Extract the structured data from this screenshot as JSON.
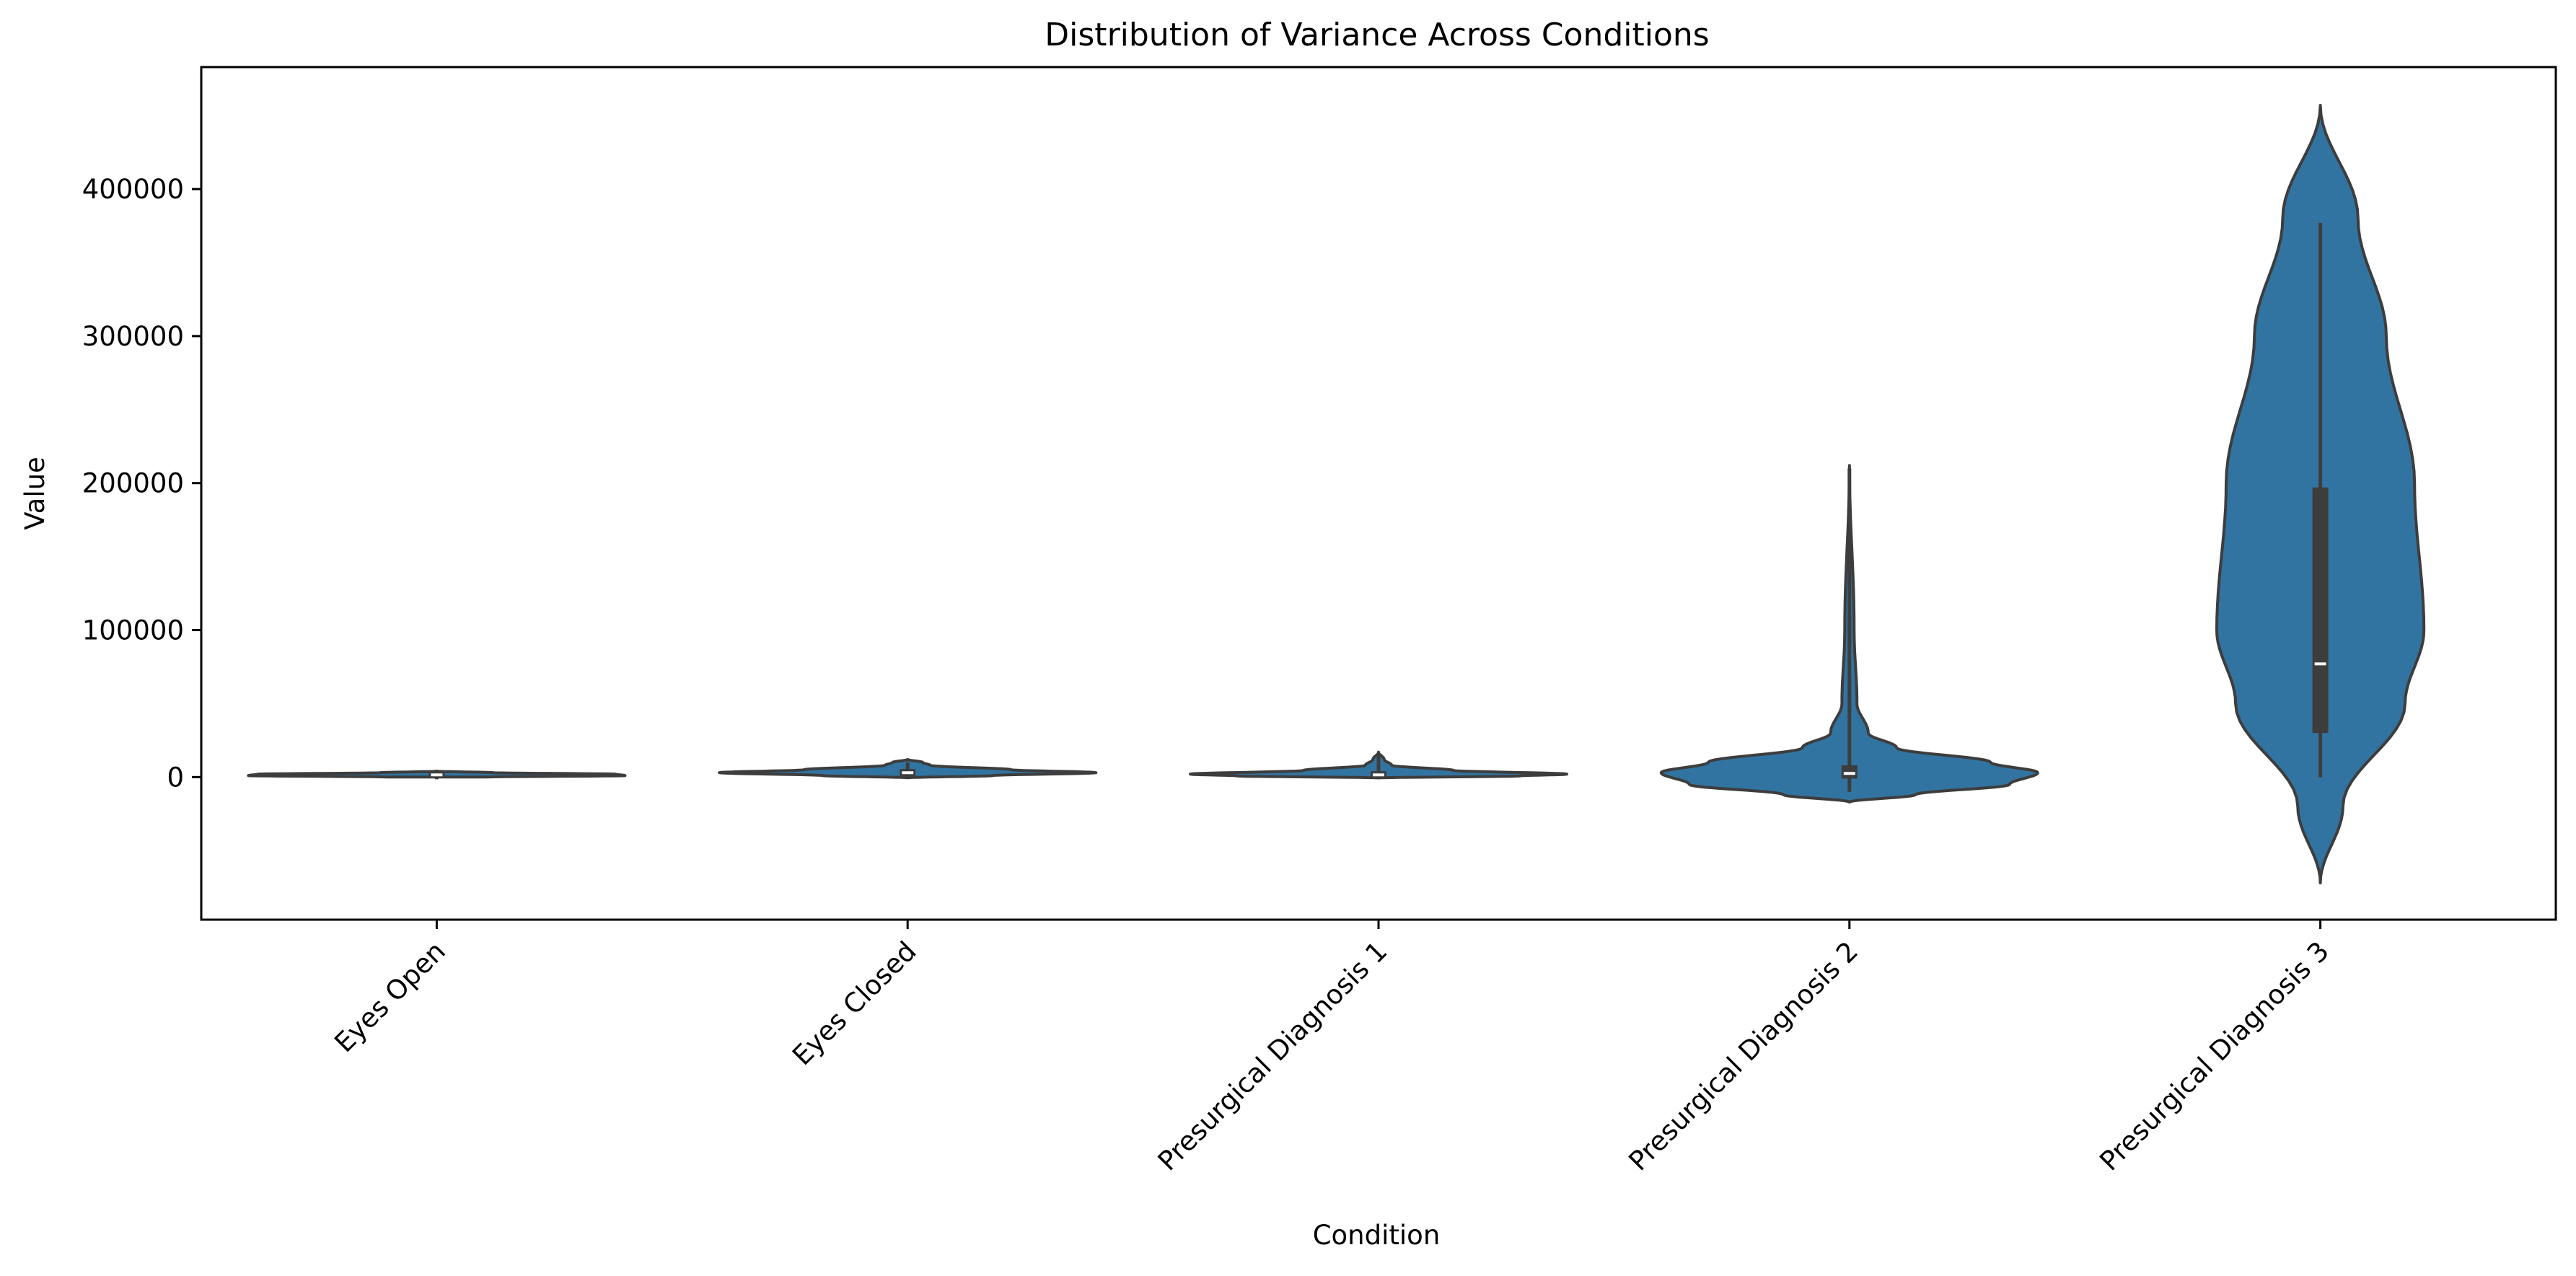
{
  "chart_data": {
    "type": "violin",
    "title": "Distribution of Variance Across Conditions",
    "xlabel": "Condition",
    "ylabel": "Value",
    "ylim": [
      -97000,
      483000
    ],
    "yticks": [
      0,
      100000,
      200000,
      300000,
      400000
    ],
    "ytick_labels": [
      "0",
      "100000",
      "200000",
      "300000",
      "400000"
    ],
    "grid": false,
    "legend": "none",
    "colors": {
      "violin_fill": "#3274a1",
      "edge": "#3d3d3d",
      "box": "#3d3d3d",
      "median": "#ffffff"
    },
    "categories": [
      "Eyes Open",
      "Eyes Closed",
      "Presurgical Diagnosis 1",
      "Presurgical Diagnosis 2",
      "Presurgical Diagnosis 3"
    ],
    "violins": [
      {
        "category": "Eyes Open",
        "kde_min": 0,
        "kde_max": 4000,
        "q1": -500,
        "median": 1500,
        "q3": 4000,
        "whisker_low": -1500,
        "whisker_high": 5000,
        "density": [
          [
            0,
            0.25
          ],
          [
            1000,
            1.0
          ],
          [
            2000,
            0.95
          ],
          [
            3000,
            0.3
          ],
          [
            4000,
            0.0
          ]
        ]
      },
      {
        "category": "Eyes Closed",
        "kde_min": -500,
        "kde_max": 12000,
        "q1": 700,
        "median": 3000,
        "q3": 5500,
        "whisker_low": -800,
        "whisker_high": 10000,
        "density": [
          [
            -500,
            0.0
          ],
          [
            1000,
            0.45
          ],
          [
            3000,
            1.0
          ],
          [
            5000,
            0.55
          ],
          [
            8000,
            0.12
          ],
          [
            10000,
            0.08
          ],
          [
            12000,
            0.0
          ]
        ]
      },
      {
        "category": "Presurgical Diagnosis 1",
        "kde_min": -600,
        "kde_max": 17000,
        "q1": 200,
        "median": 1500,
        "q3": 4000,
        "whisker_low": -800,
        "whisker_high": 15000,
        "density": [
          [
            -600,
            0.0
          ],
          [
            800,
            0.75
          ],
          [
            2000,
            1.0
          ],
          [
            4500,
            0.4
          ],
          [
            8000,
            0.07
          ],
          [
            12000,
            0.03
          ],
          [
            17000,
            0.0
          ]
        ]
      },
      {
        "category": "Presurgical Diagnosis 2",
        "kde_min": -17000,
        "kde_max": 212000,
        "q1": -1000,
        "median": 2500,
        "q3": 8000,
        "whisker_low": -10000,
        "whisker_high": 210000,
        "density": [
          [
            -17000,
            0.0
          ],
          [
            -12000,
            0.35
          ],
          [
            -5000,
            0.85
          ],
          [
            3000,
            1.0
          ],
          [
            10000,
            0.75
          ],
          [
            20000,
            0.25
          ],
          [
            30000,
            0.1
          ],
          [
            50000,
            0.04
          ],
          [
            100000,
            0.025
          ],
          [
            212000,
            0.0
          ]
        ]
      },
      {
        "category": "Presurgical Diagnosis 3",
        "kde_min": -72000,
        "kde_max": 457000,
        "q1": 30000,
        "median": 77000,
        "q3": 197000,
        "whisker_low": 0,
        "whisker_high": 377000,
        "density": [
          [
            -72000,
            0.0
          ],
          [
            -20000,
            0.12
          ],
          [
            50000,
            0.45
          ],
          [
            100000,
            0.55
          ],
          [
            200000,
            0.5
          ],
          [
            300000,
            0.35
          ],
          [
            380000,
            0.2
          ],
          [
            457000,
            0.0
          ]
        ]
      }
    ]
  }
}
